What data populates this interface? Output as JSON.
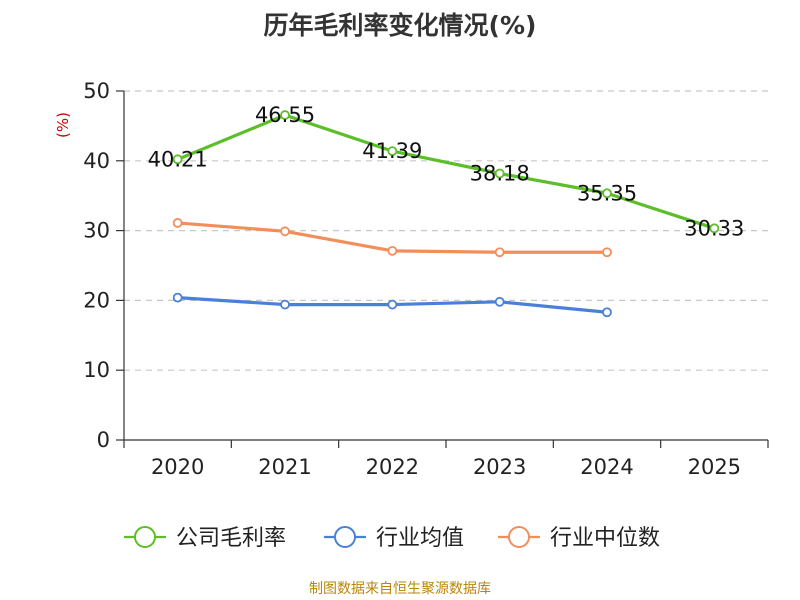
{
  "chart_data": {
    "type": "line",
    "title": "历年毛利率变化情况(%)",
    "ylabel": "(%)",
    "xlabel": "",
    "categories": [
      "2020",
      "2021",
      "2022",
      "2023",
      "2024",
      "2025"
    ],
    "ylim": [
      0,
      50
    ],
    "yticks": [
      "0",
      "10",
      "20",
      "30",
      "40",
      "50"
    ],
    "series": [
      {
        "name": "公司毛利率",
        "color": "#5cbf2a",
        "values": [
          40.21,
          46.55,
          41.39,
          38.18,
          35.35,
          30.33
        ],
        "labels": [
          "40.21",
          "46.55",
          "41.39",
          "38.18",
          "35.35",
          "30.33"
        ]
      },
      {
        "name": "行业均值",
        "color": "#4a80d9",
        "values": [
          20.4,
          19.4,
          19.4,
          19.8,
          18.3,
          null
        ]
      },
      {
        "name": "行业中位数",
        "color": "#f28e5b",
        "values": [
          31.1,
          29.9,
          27.1,
          26.9,
          26.9,
          null
        ]
      }
    ],
    "source": "制图数据来自恒生聚源数据库"
  }
}
